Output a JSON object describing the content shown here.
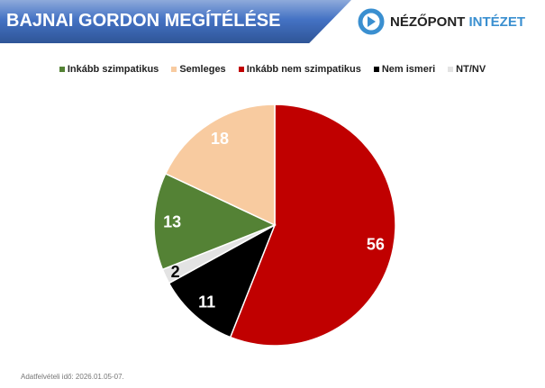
{
  "header": {
    "title": "BAJNAI GORDON MEGÍTÉLÉSE",
    "logo_main": "NÉZŐPONT",
    "logo_accent": "INTÉZET"
  },
  "footer": {
    "note": "Adatfelvételi idő: 2026.01.05-07."
  },
  "chart_data": {
    "type": "pie",
    "categories": [
      "Inkább nem szimpatikus",
      "Nem ismeri",
      "NT/NV",
      "Inkább szimpatikus",
      "Semleges"
    ],
    "values": [
      56,
      11,
      2,
      13,
      18
    ],
    "colors": [
      "#c00000",
      "#000000",
      "#e3e3e3",
      "#548235",
      "#f8cba0"
    ],
    "label_colors": [
      "#ffffff",
      "#ffffff",
      "#000000",
      "#ffffff",
      "#ffffff"
    ],
    "legend_order": [
      {
        "name": "Inkább szimpatikus",
        "color": "#548235"
      },
      {
        "name": "Semleges",
        "color": "#f8cba0"
      },
      {
        "name": "Inkább nem szimpatikus",
        "color": "#c00000"
      },
      {
        "name": "Nem ismeri",
        "color": "#000000"
      },
      {
        "name": "NT/NV",
        "color": "#e3e3e3"
      }
    ],
    "legend_position": "top",
    "start": "12 o'clock, clockwise"
  }
}
